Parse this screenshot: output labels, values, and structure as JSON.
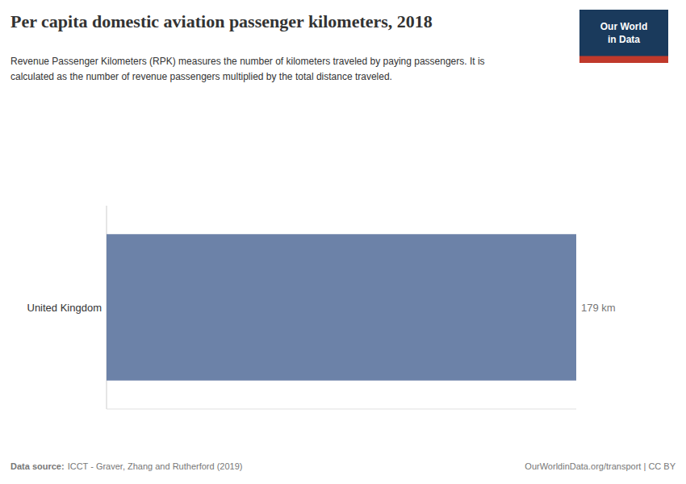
{
  "chart_data": {
    "type": "bar",
    "orientation": "horizontal",
    "title": "Per capita domestic aviation passenger kilometers, 2018",
    "subtitle": "Revenue Passenger Kilometers (RPK) measures the number of kilometers traveled by paying passengers. It is\ncalculated as the number of revenue passengers multiplied by the total distance traveled.",
    "categories": [
      "United Kingdom"
    ],
    "values": [
      179
    ],
    "value_labels": [
      "179 km"
    ],
    "data_labels": true,
    "color": "#6c82a8",
    "xlim": [
      0,
      179
    ],
    "xticks": [],
    "tick_labels": "y",
    "grid": false,
    "annotations": [
      "Data source:",
      "ICCT - Graver, Zhang and Rutherford (2019)",
      "OurWorldinData.org/transport | CC BY",
      "Our World\nin Data"
    ]
  }
}
